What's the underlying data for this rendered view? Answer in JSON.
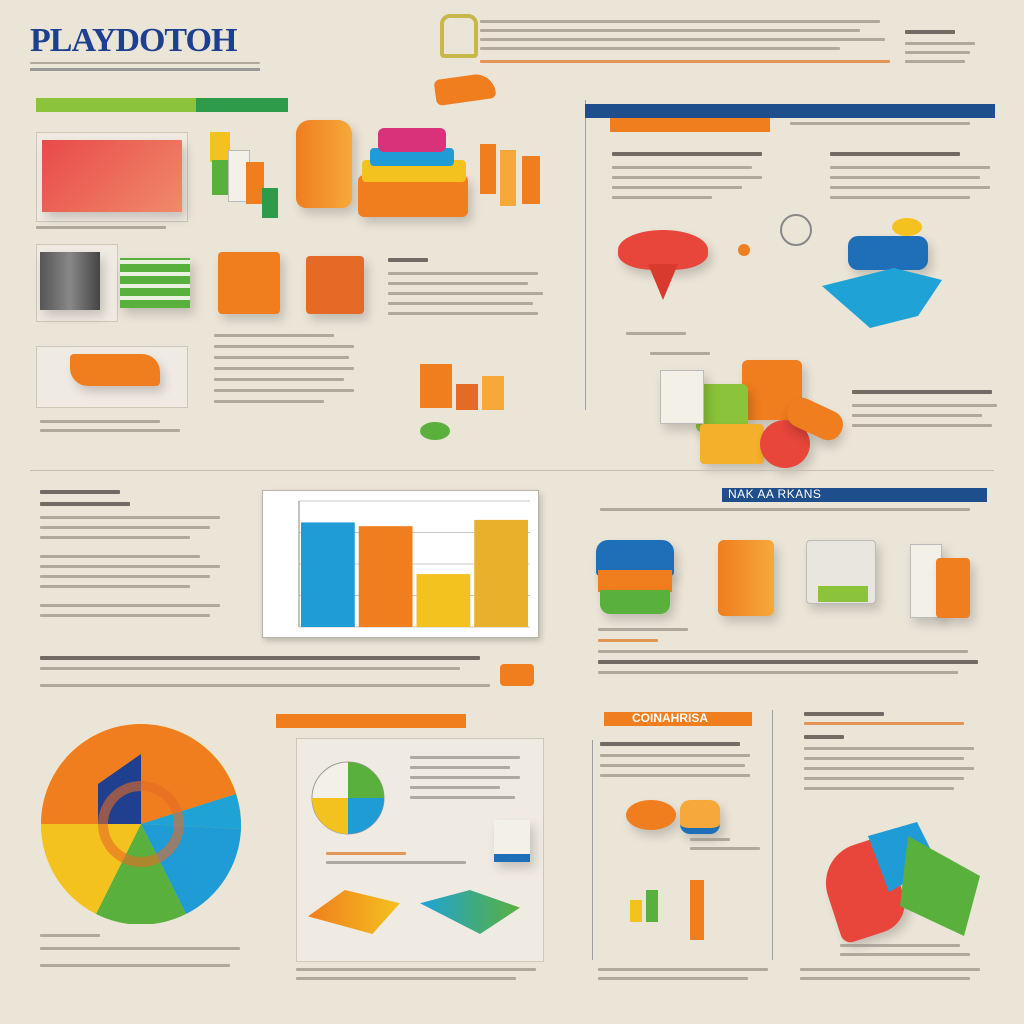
{
  "header": {
    "title": "PLAYDOTOH"
  },
  "colors": {
    "background": "#ebe5d8",
    "title_blue": "#1e3f8f",
    "accent_orange": "#f07d1e",
    "accent_yellow": "#f4c21f",
    "accent_blue": "#1f8fd0",
    "accent_green": "#5ab03c",
    "accent_red": "#e8463a",
    "banner_green": "#2e9b4a",
    "banner_navy": "#1f4e8c"
  },
  "sections": {
    "section_2_heading": "NAK AA RKANS",
    "section_3_heading": "COINAHRISA"
  },
  "chart_data": {
    "type": "bar",
    "categories": [
      "",
      "",
      "",
      ""
    ],
    "series": [
      {
        "values": [
          83,
          80,
          42,
          85
        ]
      }
    ],
    "bar_colors": [
      "#1f9bd6",
      "#f07d1e",
      "#f4c21f",
      "#e9b02a"
    ],
    "ylim": [
      0,
      100
    ],
    "grid": true
  }
}
